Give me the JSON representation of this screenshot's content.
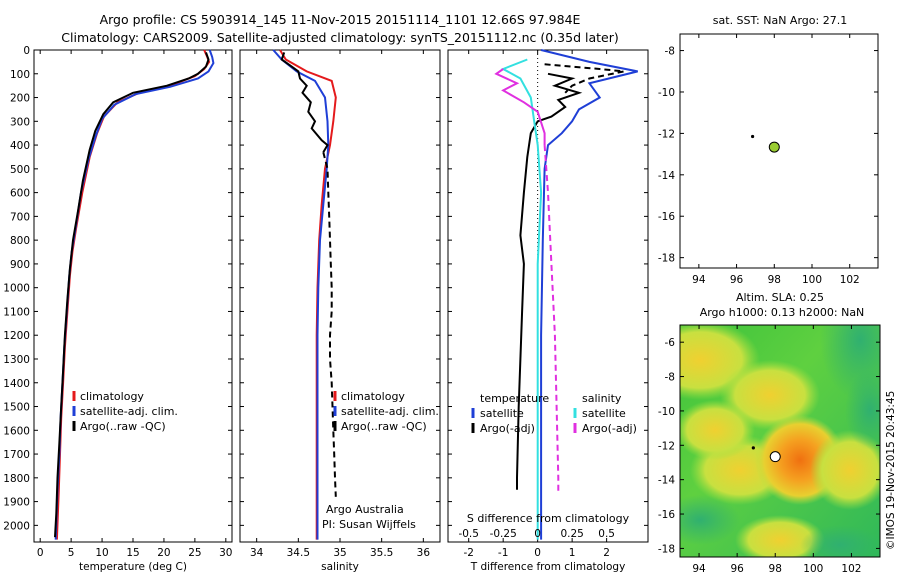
{
  "title_line1": "Argo profile: CS 5903914_145 11-Nov-2015 20151114_1101 12.66S 97.984E",
  "title_line2": "Climatology: CARS2009. Satellite-adjusted climatology: synTS_20151112.nc (0.35d later)",
  "side_stamp": "©IMOS 19-Nov-2015 20:43:45",
  "colors": {
    "climatology": "#e41a1c",
    "satellite": "#1f3fd6",
    "argo": "#000000",
    "salinity_sat": "#33e0e0",
    "salinity_argo": "#e030e0"
  },
  "chart_data": [
    {
      "type": "line",
      "id": "temperature-profile",
      "xlabel": "temperature (deg C)",
      "xlim": [
        -1,
        31
      ],
      "ylim": [
        2070,
        0
      ],
      "xticks": [
        0,
        5,
        10,
        15,
        20,
        25,
        30
      ],
      "yticks": [
        0,
        100,
        200,
        300,
        400,
        500,
        600,
        700,
        800,
        900,
        1000,
        1100,
        1200,
        1300,
        1400,
        1500,
        1600,
        1700,
        1800,
        1900,
        2000
      ],
      "legend": [
        "climatology",
        "satellite-adj. clim.",
        "Argo(..raw -QC)"
      ],
      "legend_position": "lower-center",
      "series": [
        {
          "name": "climatology",
          "color": "#e41a1c",
          "dashed": false,
          "points": [
            [
              26.5,
              0
            ],
            [
              27,
              30
            ],
            [
              27.3,
              50
            ],
            [
              26.5,
              80
            ],
            [
              25,
              110
            ],
            [
              21,
              150
            ],
            [
              16,
              180
            ],
            [
              12.5,
              220
            ],
            [
              10.3,
              280
            ],
            [
              9.2,
              350
            ],
            [
              8,
              450
            ],
            [
              6.8,
              600
            ],
            [
              5.8,
              750
            ],
            [
              5.2,
              850
            ],
            [
              4.8,
              950
            ],
            [
              4.4,
              1100
            ],
            [
              4,
              1250
            ],
            [
              3.7,
              1400
            ],
            [
              3.4,
              1550
            ],
            [
              3.2,
              1700
            ],
            [
              3,
              1850
            ],
            [
              2.7,
              2060
            ]
          ]
        },
        {
          "name": "satellite-adj. clim.",
          "color": "#1f3fd6",
          "dashed": false,
          "points": [
            [
              27.4,
              0
            ],
            [
              27.8,
              30
            ],
            [
              28,
              55
            ],
            [
              27.2,
              90
            ],
            [
              25.5,
              120
            ],
            [
              21,
              155
            ],
            [
              15.5,
              185
            ],
            [
              12,
              230
            ],
            [
              10,
              290
            ],
            [
              9,
              360
            ],
            [
              7.8,
              460
            ],
            [
              6.6,
              600
            ],
            [
              5.7,
              750
            ],
            [
              5.1,
              850
            ],
            [
              4.7,
              950
            ],
            [
              4.3,
              1100
            ],
            [
              3.9,
              1250
            ],
            [
              3.6,
              1400
            ],
            [
              3.3,
              1550
            ],
            [
              3.1,
              1700
            ],
            [
              2.8,
              1850
            ],
            [
              2.5,
              2060
            ]
          ]
        },
        {
          "name": "Argo(..raw -QC)",
          "color": "#000000",
          "dashed": false,
          "points": [
            [
              26.8,
              10
            ],
            [
              27.2,
              40
            ],
            [
              26.8,
              70
            ],
            [
              25.5,
              100
            ],
            [
              24,
              120
            ],
            [
              20.5,
              150
            ],
            [
              15,
              180
            ],
            [
              11.8,
              220
            ],
            [
              10.2,
              270
            ],
            [
              8.9,
              340
            ],
            [
              8,
              420
            ],
            [
              6.9,
              550
            ],
            [
              6.1,
              680
            ],
            [
              5.3,
              800
            ],
            [
              4.8,
              920
            ],
            [
              4.4,
              1050
            ],
            [
              4,
              1200
            ],
            [
              3.7,
              1350
            ],
            [
              3.4,
              1500
            ],
            [
              3.1,
              1650
            ],
            [
              2.8,
              1800
            ],
            [
              2.6,
              1950
            ],
            [
              2.4,
              2050
            ]
          ]
        }
      ]
    },
    {
      "type": "line",
      "id": "salinity-profile",
      "xlabel": "salinity",
      "xlim": [
        33.8,
        36.2
      ],
      "ylim": [
        2070,
        0
      ],
      "xticks": [
        34,
        34.5,
        35,
        35.5,
        36
      ],
      "legend": [
        "climatology",
        "satellite-adj. clim.",
        "Argo(..raw -QC)"
      ],
      "legend_position": "lower-right",
      "annotation": [
        "Argo Australia",
        "PI: Susan Wijffels"
      ],
      "series": [
        {
          "name": "climatology",
          "color": "#e41a1c",
          "dashed": false,
          "points": [
            [
              34.28,
              0
            ],
            [
              34.35,
              40
            ],
            [
              34.6,
              90
            ],
            [
              34.9,
              130
            ],
            [
              34.95,
              200
            ],
            [
              34.92,
              300
            ],
            [
              34.88,
              400
            ],
            [
              34.82,
              500
            ],
            [
              34.78,
              650
            ],
            [
              34.75,
              800
            ],
            [
              34.73,
              1000
            ],
            [
              34.72,
              1200
            ],
            [
              34.72,
              1500
            ],
            [
              34.72,
              1800
            ],
            [
              34.72,
              2060
            ]
          ]
        },
        {
          "name": "satellite-adj. clim.",
          "color": "#1f3fd6",
          "dashed": false,
          "points": [
            [
              34.2,
              0
            ],
            [
              34.3,
              40
            ],
            [
              34.48,
              90
            ],
            [
              34.7,
              130
            ],
            [
              34.82,
              200
            ],
            [
              34.85,
              300
            ],
            [
              34.86,
              400
            ],
            [
              34.84,
              500
            ],
            [
              34.8,
              650
            ],
            [
              34.76,
              800
            ],
            [
              34.74,
              1000
            ],
            [
              34.73,
              1200
            ],
            [
              34.73,
              1500
            ],
            [
              34.73,
              1800
            ],
            [
              34.73,
              2060
            ]
          ]
        },
        {
          "name": "Argo(..raw -QC)",
          "color": "#000000",
          "dashed": false,
          "points": [
            [
              34.33,
              10
            ],
            [
              34.3,
              40
            ],
            [
              34.42,
              70
            ],
            [
              34.5,
              90
            ],
            [
              34.52,
              120
            ],
            [
              34.6,
              150
            ],
            [
              34.55,
              180
            ],
            [
              34.65,
              220
            ],
            [
              34.62,
              260
            ],
            [
              34.7,
              300
            ],
            [
              34.66,
              330
            ],
            [
              34.78,
              380
            ],
            [
              34.85,
              400
            ],
            [
              34.8,
              430
            ]
          ]
        },
        {
          "name": "Argo(..raw -QC) dashed",
          "color": "#000000",
          "dashed": true,
          "points": [
            [
              34.8,
              430
            ],
            [
              34.85,
              500
            ],
            [
              34.86,
              600
            ],
            [
              34.87,
              700
            ],
            [
              34.88,
              800
            ],
            [
              34.89,
              900
            ],
            [
              34.9,
              1000
            ],
            [
              34.9,
              1100
            ],
            [
              34.88,
              1200
            ],
            [
              34.88,
              1300
            ],
            [
              34.9,
              1400
            ],
            [
              34.91,
              1500
            ],
            [
              34.92,
              1600
            ],
            [
              34.93,
              1700
            ],
            [
              34.94,
              1800
            ],
            [
              34.95,
              1880
            ]
          ]
        }
      ]
    },
    {
      "type": "line",
      "id": "difference-profile",
      "xlabel": "T difference from climatology",
      "xlabel_top": "S difference from climatology",
      "xlim": [
        -2.6,
        3.2
      ],
      "ylim": [
        2070,
        0
      ],
      "xticks": [
        -2,
        -1,
        0,
        1,
        2
      ],
      "xticks_top_labels": [
        "-0.5",
        "-0.25",
        "0",
        "0.25",
        "0.5"
      ],
      "xticks_top_pos": [
        -2,
        -1,
        0,
        1,
        2
      ],
      "legend": [
        "temperature",
        "satellite",
        "Argo(-adj)",
        "salinity",
        "satellite",
        "Argo(-adj)"
      ],
      "legend_position": "lower-center",
      "series": [
        {
          "name": "temperature satellite",
          "color": "#1f3fd6",
          "dashed": false,
          "points": [
            [
              0.1,
              0
            ],
            [
              1.5,
              50
            ],
            [
              2.9,
              90
            ],
            [
              1.5,
              140
            ],
            [
              1.8,
              200
            ],
            [
              1.2,
              250
            ],
            [
              1.0,
              300
            ],
            [
              0.7,
              350
            ],
            [
              0.3,
              400
            ],
            [
              0.2,
              500
            ],
            [
              0.15,
              800
            ],
            [
              0.1,
              1200
            ],
            [
              0.1,
              1600
            ],
            [
              0.1,
              2060
            ]
          ]
        },
        {
          "name": "temperature Argo(-adj)",
          "color": "#000000",
          "dashed": false,
          "points": [
            [
              0.3,
              100
            ],
            [
              1.0,
              120
            ],
            [
              0.5,
              150
            ],
            [
              1.2,
              180
            ],
            [
              0.6,
              210
            ],
            [
              0.8,
              240
            ],
            [
              0.4,
              280
            ],
            [
              0,
              300
            ],
            [
              -0.2,
              350
            ],
            [
              -0.3,
              450
            ],
            [
              -0.4,
              600
            ],
            [
              -0.5,
              780
            ],
            [
              -0.4,
              900
            ],
            [
              -0.45,
              1100
            ],
            [
              -0.5,
              1300
            ],
            [
              -0.55,
              1500
            ],
            [
              -0.6,
              1800
            ],
            [
              -0.6,
              1850
            ]
          ]
        },
        {
          "name": "temperature Argo(-adj) dashed",
          "color": "#000000",
          "dashed": true,
          "points": [
            [
              0.2,
              60
            ],
            [
              1.8,
              80
            ],
            [
              2.5,
              90
            ],
            [
              1.5,
              120
            ],
            [
              1.0,
              150
            ],
            [
              0.8,
              180
            ]
          ]
        },
        {
          "name": "salinity satellite",
          "color": "#33e0e0",
          "dashed": false,
          "points": [
            [
              -0.3,
              40
            ],
            [
              -1.0,
              80
            ],
            [
              -0.5,
              120
            ],
            [
              -0.2,
              200
            ],
            [
              -0.1,
              300
            ],
            [
              0,
              400
            ],
            [
              0.1,
              600
            ],
            [
              0,
              900
            ],
            [
              0,
              1200
            ],
            [
              0,
              1600
            ],
            [
              0,
              2060
            ]
          ]
        },
        {
          "name": "salinity Argo(-adj)",
          "color": "#e030e0",
          "dashed": false,
          "points": [
            [
              -1.0,
              80
            ],
            [
              -1.2,
              100
            ],
            [
              -0.6,
              140
            ],
            [
              -1.0,
              170
            ],
            [
              -0.4,
              220
            ],
            [
              0,
              260
            ],
            [
              0.2,
              350
            ],
            [
              0.2,
              400
            ]
          ]
        },
        {
          "name": "salinity Argo(-adj) dashed",
          "color": "#e030e0",
          "dashed": true,
          "points": [
            [
              0.2,
              400
            ],
            [
              0.3,
              600
            ],
            [
              0.4,
              900
            ],
            [
              0.5,
              1200
            ],
            [
              0.55,
              1500
            ],
            [
              0.6,
              1800
            ],
            [
              0.6,
              1870
            ]
          ]
        }
      ]
    },
    {
      "type": "scatter",
      "id": "sst-map",
      "title": "sat. SST: NaN Argo: 27.1",
      "xlim": [
        93,
        103.5
      ],
      "ylim": [
        -18.5,
        -7.2
      ],
      "xticks": [
        94,
        96,
        98,
        100,
        102
      ],
      "yticks": [
        -8,
        -10,
        -12,
        -14,
        -16,
        -18
      ],
      "points": [
        {
          "x": 98.0,
          "y": -12.66,
          "color": "#9acd32",
          "marker": "circle"
        },
        {
          "x": 96.85,
          "y": -12.15,
          "color": "#000000",
          "marker": "dot"
        }
      ]
    },
    {
      "type": "heatmap",
      "id": "sla-map",
      "title_line1": "Altim. SLA: 0.25",
      "title_line2": "Argo h1000: 0.13 h2000: NaN",
      "xlim": [
        93,
        103.5
      ],
      "ylim": [
        -18.5,
        -5
      ],
      "xticks": [
        94,
        96,
        98,
        100,
        102
      ],
      "yticks": [
        -6,
        -8,
        -10,
        -12,
        -14,
        -16,
        -18
      ],
      "points": [
        {
          "x": 98.0,
          "y": -12.66,
          "color": "#ffffff",
          "marker": "circle"
        },
        {
          "x": 96.85,
          "y": -12.15,
          "color": "#000000",
          "marker": "dot"
        }
      ]
    }
  ]
}
